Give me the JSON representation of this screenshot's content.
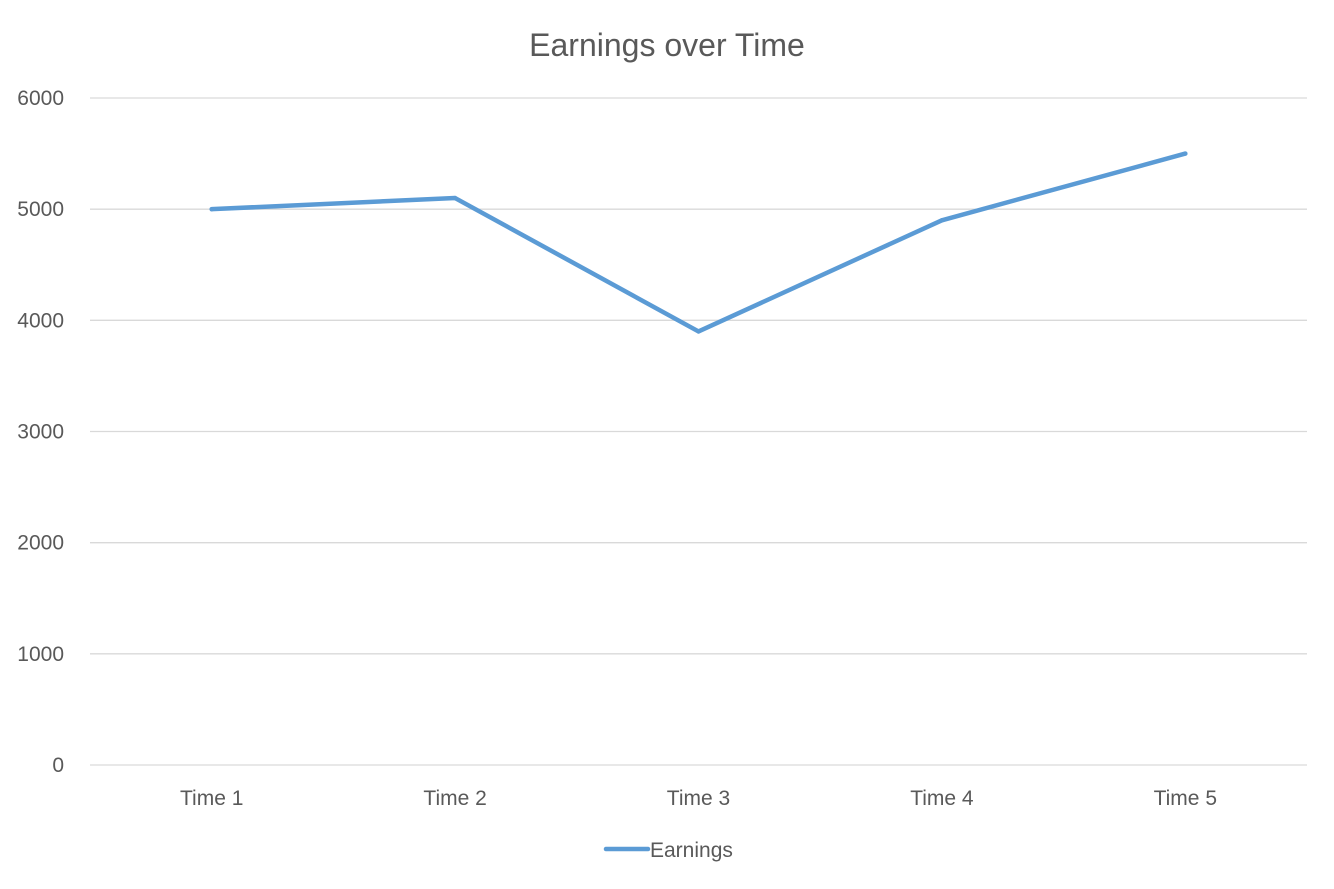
{
  "chart_data": {
    "type": "line",
    "title": "Earnings over Time",
    "xlabel": "",
    "ylabel": "",
    "categories": [
      "Time 1",
      "Time 2",
      "Time 3",
      "Time 4",
      "Time 5"
    ],
    "series": [
      {
        "name": "Earnings",
        "values": [
          5000,
          5100,
          3900,
          4900,
          5500
        ],
        "color": "#5b9bd5"
      }
    ],
    "ylim": [
      0,
      6000
    ],
    "yticks": [
      0,
      1000,
      2000,
      3000,
      4000,
      5000,
      6000
    ],
    "grid": true,
    "legend": "bottom",
    "colors": {
      "text": "#595959",
      "grid": "#d9d9d9"
    }
  }
}
